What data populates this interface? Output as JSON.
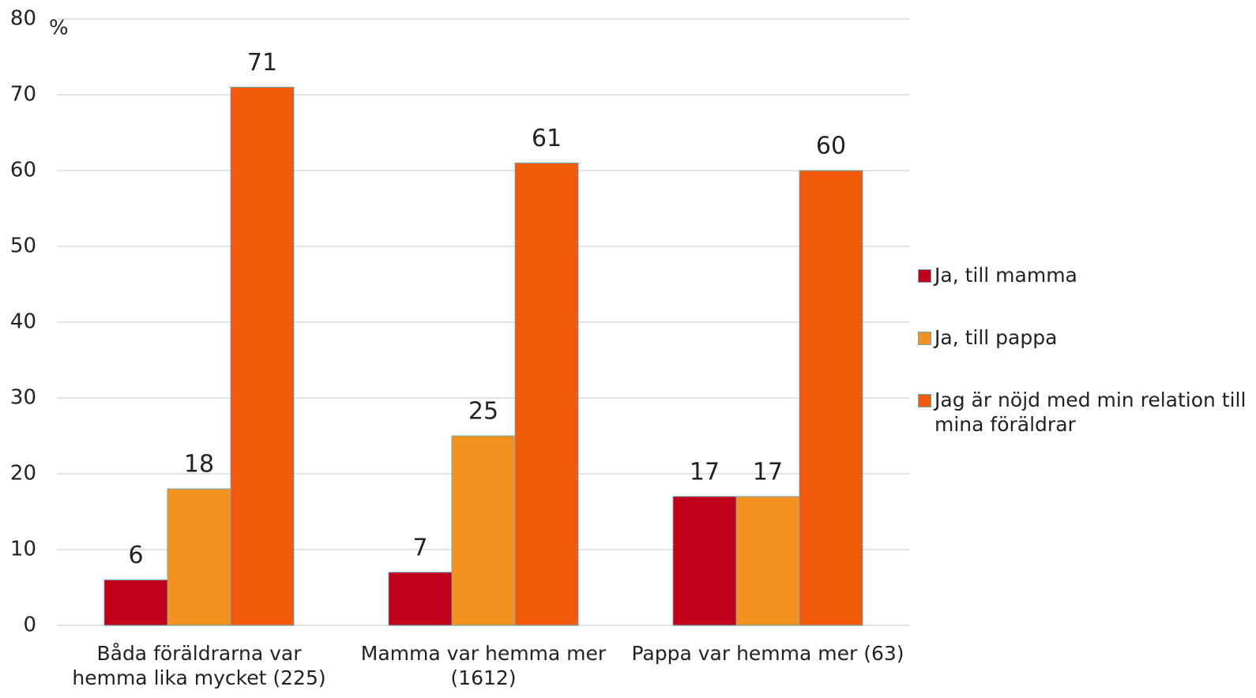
{
  "chart_data": {
    "type": "bar",
    "y_axis_label": "%",
    "categories": [
      "Båda föräldrarna var hemma lika mycket (225)",
      "Mamma var hemma mer (1612)",
      "Pappa var hemma mer (63)"
    ],
    "series": [
      {
        "name": "Ja, till mamma",
        "color": "#c0001a",
        "values": [
          6,
          7,
          17
        ]
      },
      {
        "name": "Ja, till pappa",
        "color": "#f39220",
        "values": [
          18,
          25,
          17
        ]
      },
      {
        "name": "Jag är nöjd med min relation till mina föräldrar",
        "color": "#f05a0a",
        "values": [
          71,
          61,
          60
        ]
      }
    ],
    "ylim": [
      0,
      80
    ],
    "yticks": [
      0,
      10,
      20,
      30,
      40,
      50,
      60,
      70,
      80
    ],
    "grid": true,
    "legend": "right"
  }
}
